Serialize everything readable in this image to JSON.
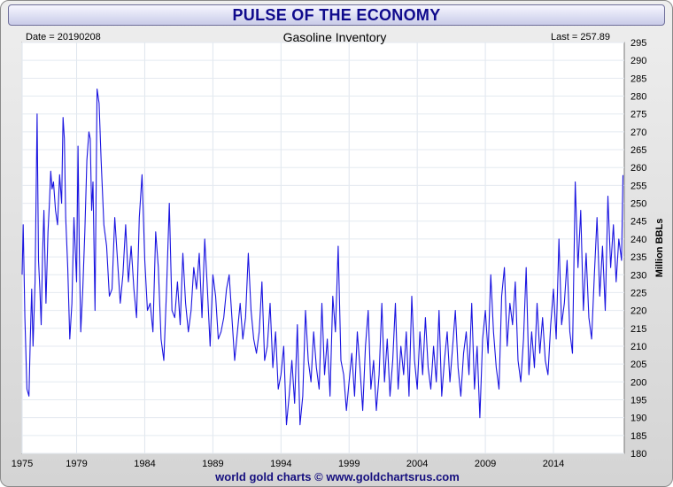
{
  "banner": {
    "title": "PULSE OF THE ECONOMY"
  },
  "chart_data": {
    "type": "line",
    "title": "Gasoline Inventory",
    "date_label": "Date = 20190208",
    "last_label": "Last = 257.89",
    "ylabel": "Million BBLs",
    "xlim": [
      1975.0,
      2019.2
    ],
    "ylim": [
      180,
      295
    ],
    "x_ticks": [
      1975,
      1979,
      1984,
      1989,
      1994,
      1999,
      2004,
      2009,
      2014
    ],
    "y_ticks": [
      180,
      185,
      190,
      195,
      200,
      205,
      210,
      215,
      220,
      225,
      230,
      235,
      240,
      245,
      250,
      255,
      260,
      265,
      270,
      275,
      280,
      285,
      290,
      295
    ],
    "grid": true,
    "line_color": "#1a14e0",
    "series": [
      {
        "x": [
          1975.0,
          1975.08,
          1975.2,
          1975.35,
          1975.5,
          1975.6,
          1975.7,
          1975.8,
          1975.95,
          1976.1,
          1976.2,
          1976.3,
          1976.4,
          1976.5,
          1976.6,
          1976.75,
          1976.9,
          1977.0,
          1977.1,
          1977.2,
          1977.3,
          1977.45,
          1977.6,
          1977.75,
          1977.9,
          1978.0,
          1978.1,
          1978.2,
          1978.35,
          1978.5,
          1978.65,
          1978.8,
          1979.0,
          1979.1,
          1979.2,
          1979.3,
          1979.45,
          1979.6,
          1979.75,
          1979.9,
          1980.0,
          1980.1,
          1980.2,
          1980.35,
          1980.5,
          1980.65,
          1980.8,
          1981.0,
          1981.2,
          1981.4,
          1981.6,
          1981.8,
          1982.0,
          1982.2,
          1982.4,
          1982.6,
          1982.8,
          1983.0,
          1983.2,
          1983.4,
          1983.6,
          1983.8,
          1984.0,
          1984.2,
          1984.4,
          1984.6,
          1984.8,
          1985.0,
          1985.2,
          1985.4,
          1985.6,
          1985.8,
          1986.0,
          1986.2,
          1986.4,
          1986.6,
          1986.8,
          1987.0,
          1987.2,
          1987.4,
          1987.6,
          1987.8,
          1988.0,
          1988.2,
          1988.4,
          1988.6,
          1988.8,
          1989.0,
          1989.2,
          1989.4,
          1989.6,
          1989.8,
          1990.0,
          1990.2,
          1990.4,
          1990.6,
          1990.8,
          1991.0,
          1991.2,
          1991.4,
          1991.6,
          1991.8,
          1992.0,
          1992.2,
          1992.4,
          1992.6,
          1992.8,
          1993.0,
          1993.2,
          1993.4,
          1993.6,
          1993.8,
          1994.0,
          1994.2,
          1994.4,
          1994.6,
          1994.8,
          1995.0,
          1995.2,
          1995.4,
          1995.6,
          1995.8,
          1996.0,
          1996.2,
          1996.4,
          1996.6,
          1996.8,
          1997.0,
          1997.2,
          1997.4,
          1997.6,
          1997.8,
          1998.0,
          1998.2,
          1998.4,
          1998.6,
          1998.8,
          1999.0,
          1999.2,
          1999.4,
          1999.6,
          1999.8,
          2000.0,
          2000.2,
          2000.4,
          2000.6,
          2000.8,
          2001.0,
          2001.2,
          2001.4,
          2001.6,
          2001.8,
          2002.0,
          2002.2,
          2002.4,
          2002.6,
          2002.8,
          2003.0,
          2003.2,
          2003.4,
          2003.6,
          2003.8,
          2004.0,
          2004.2,
          2004.4,
          2004.6,
          2004.8,
          2005.0,
          2005.2,
          2005.4,
          2005.6,
          2005.8,
          2006.0,
          2006.2,
          2006.4,
          2006.6,
          2006.8,
          2007.0,
          2007.2,
          2007.4,
          2007.6,
          2007.8,
          2008.0,
          2008.2,
          2008.4,
          2008.6,
          2008.8,
          2009.0,
          2009.2,
          2009.4,
          2009.6,
          2009.8,
          2010.0,
          2010.2,
          2010.4,
          2010.6,
          2010.8,
          2011.0,
          2011.2,
          2011.4,
          2011.6,
          2011.8,
          2012.0,
          2012.2,
          2012.4,
          2012.6,
          2012.8,
          2013.0,
          2013.2,
          2013.4,
          2013.6,
          2013.8,
          2014.0,
          2014.2,
          2014.4,
          2014.6,
          2014.8,
          2015.0,
          2015.2,
          2015.4,
          2015.6,
          2015.8,
          2016.0,
          2016.2,
          2016.4,
          2016.6,
          2016.8,
          2017.0,
          2017.2,
          2017.4,
          2017.6,
          2017.8,
          2018.0,
          2018.2,
          2018.4,
          2018.6,
          2018.8,
          2019.0,
          2019.1
        ],
        "y": [
          230,
          244,
          218,
          198,
          196,
          212,
          226,
          210,
          228,
          275,
          234,
          226,
          216,
          236,
          248,
          222,
          242,
          250,
          259,
          254,
          256,
          248,
          244,
          258,
          250,
          274,
          268,
          246,
          232,
          212,
          222,
          246,
          228,
          266,
          236,
          214,
          226,
          242,
          262,
          270,
          268,
          248,
          256,
          220,
          282,
          278,
          262,
          244,
          238,
          224,
          226,
          246,
          234,
          222,
          230,
          244,
          228,
          238,
          226,
          218,
          246,
          258,
          234,
          220,
          222,
          214,
          242,
          232,
          212,
          206,
          226,
          250,
          220,
          218,
          228,
          216,
          236,
          222,
          214,
          220,
          232,
          226,
          236,
          218,
          240,
          226,
          210,
          230,
          224,
          212,
          214,
          218,
          226,
          230,
          218,
          206,
          214,
          222,
          212,
          218,
          236,
          220,
          212,
          208,
          214,
          228,
          206,
          210,
          222,
          204,
          214,
          198,
          202,
          210,
          188,
          196,
          206,
          194,
          216,
          188,
          196,
          220,
          206,
          200,
          214,
          204,
          198,
          222,
          202,
          212,
          196,
          224,
          214,
          238,
          206,
          202,
          192,
          200,
          208,
          196,
          214,
          204,
          192,
          210,
          220,
          198,
          206,
          192,
          202,
          222,
          200,
          212,
          196,
          206,
          222,
          198,
          210,
          202,
          214,
          196,
          224,
          206,
          198,
          214,
          202,
          218,
          204,
          198,
          210,
          200,
          220,
          196,
          206,
          214,
          200,
          210,
          220,
          204,
          196,
          208,
          214,
          202,
          222,
          198,
          210,
          190,
          212,
          220,
          208,
          230,
          214,
          204,
          198,
          224,
          232,
          210,
          222,
          216,
          228,
          206,
          200,
          212,
          232,
          202,
          214,
          204,
          222,
          208,
          218,
          206,
          202,
          216,
          226,
          212,
          240,
          216,
          222,
          234,
          214,
          208,
          256,
          232,
          248,
          220,
          236,
          218,
          212,
          230,
          246,
          224,
          238,
          220,
          252,
          232,
          244,
          228,
          240,
          234,
          257.89
        ]
      }
    ]
  },
  "footer": {
    "credit": "world gold charts © www.goldchartsrus.com"
  }
}
